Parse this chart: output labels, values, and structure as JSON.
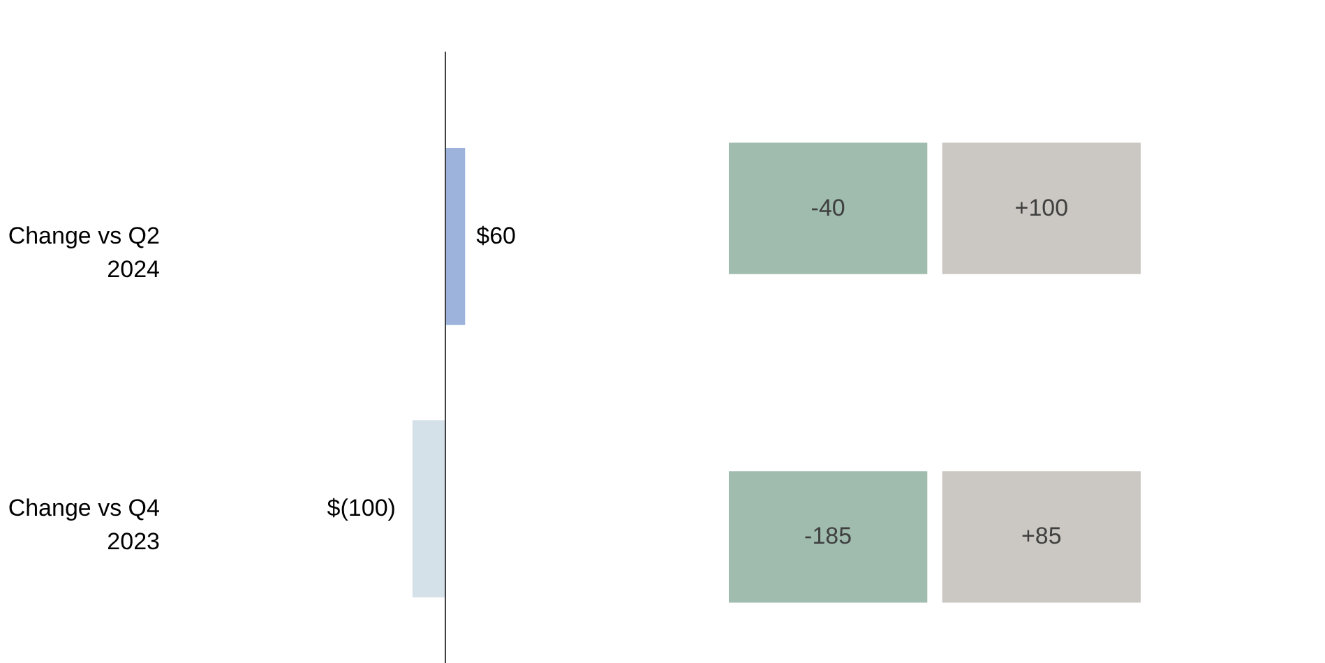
{
  "chart_data": [
    {
      "type": "bar",
      "orientation": "horizontal",
      "categories": [
        "Change vs Q2 2024",
        "Change vs Q4 2023"
      ],
      "values": [
        60,
        -100
      ],
      "colors": [
        "#9db3dc",
        "#d5e1e8"
      ],
      "value_labels": [
        "$60",
        "$(100)"
      ]
    },
    {
      "type": "other",
      "annotations": [
        "-40",
        "+100",
        "-185",
        "+85"
      ],
      "colors": [
        "#9fbcae",
        "#cbc7c2",
        "#9fbcae",
        "#cbc7c2"
      ]
    }
  ]
}
